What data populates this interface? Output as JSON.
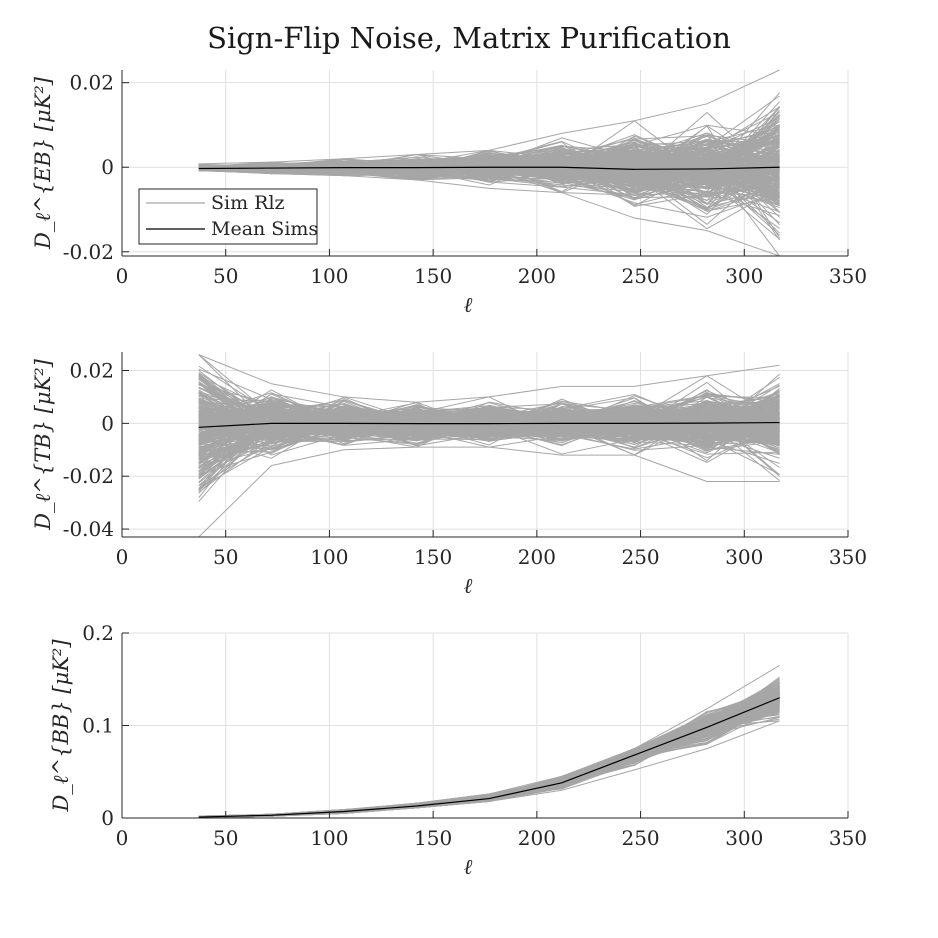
{
  "title": "Sign-Flip Noise, Matrix Purification",
  "colors": {
    "realization": "#a6a6a6",
    "mean": "#000000",
    "grid": "#e0e0e0",
    "axis": "#262626"
  },
  "legend": {
    "items": [
      "Sim Rlz",
      "Mean Sims"
    ],
    "position": "bottom-left of top panel"
  },
  "chart_data": [
    {
      "type": "line",
      "panel": "EB",
      "xlabel": "ℓ",
      "ylabel": "D_ℓ^{EB} [μK²]",
      "xlim": [
        0,
        350
      ],
      "ylim": [
        -0.021,
        0.023
      ],
      "xticks": [
        0,
        50,
        100,
        150,
        200,
        250,
        300,
        350
      ],
      "xtick_labels": [
        "0",
        "50",
        "100",
        "150",
        "200",
        "250",
        "300",
        "350"
      ],
      "yticks": [
        -0.02,
        0,
        0.02
      ],
      "ytick_labels": [
        "-0.02",
        "0",
        "0.02"
      ],
      "grid": true,
      "x": [
        37,
        72,
        107,
        142,
        177,
        212,
        247,
        282,
        317
      ],
      "series": [
        {
          "name": "Sim Rlz",
          "role": "realizations",
          "n": 300,
          "spread": [
            0.0004,
            0.0006,
            0.0009,
            0.0012,
            0.0016,
            0.0022,
            0.0035,
            0.0045,
            0.0065
          ],
          "upper_envelope": [
            0.0008,
            0.0012,
            0.002,
            0.003,
            0.004,
            0.008,
            0.011,
            0.015,
            0.023
          ],
          "lower_envelope": [
            -0.0008,
            -0.0015,
            -0.002,
            -0.003,
            -0.005,
            -0.006,
            -0.012,
            -0.015,
            -0.021
          ]
        },
        {
          "name": "Mean Sims",
          "role": "mean",
          "values": [
            -0.0003,
            -0.0002,
            -0.0001,
            -0.0001,
            0.0,
            0.0,
            -0.0005,
            -0.0004,
            0.0
          ]
        }
      ]
    },
    {
      "type": "line",
      "panel": "TB",
      "xlabel": "ℓ",
      "ylabel": "D_ℓ^{TB} [μK²]",
      "xlim": [
        0,
        350
      ],
      "ylim": [
        -0.043,
        0.027
      ],
      "xticks": [
        0,
        50,
        100,
        150,
        200,
        250,
        300,
        350
      ],
      "xtick_labels": [
        "0",
        "50",
        "100",
        "150",
        "200",
        "250",
        "300",
        "350"
      ],
      "yticks": [
        -0.04,
        -0.02,
        0,
        0.02
      ],
      "ytick_labels": [
        "-0.04",
        "-0.02",
        "0",
        "0.02"
      ],
      "grid": true,
      "x": [
        37,
        72,
        107,
        142,
        177,
        212,
        247,
        282,
        317
      ],
      "series": [
        {
          "name": "Sim Rlz",
          "role": "realizations",
          "n": 300,
          "spread": [
            0.011,
            0.0045,
            0.0035,
            0.0033,
            0.0033,
            0.0035,
            0.004,
            0.0055,
            0.0065
          ],
          "upper_envelope": [
            0.026,
            0.015,
            0.01,
            0.008,
            0.01,
            0.014,
            0.014,
            0.018,
            0.022
          ],
          "lower_envelope": [
            -0.043,
            -0.016,
            -0.01,
            -0.009,
            -0.009,
            -0.012,
            -0.012,
            -0.022,
            -0.022
          ]
        },
        {
          "name": "Mean Sims",
          "role": "mean",
          "values": [
            -0.0015,
            0.0,
            0.0,
            -0.0001,
            -0.0001,
            0.0,
            0.0,
            0.0001,
            0.0003
          ]
        }
      ]
    },
    {
      "type": "line",
      "panel": "BB",
      "xlabel": "ℓ",
      "ylabel": "D_ℓ^{BB} [μK²]",
      "xlim": [
        0,
        350
      ],
      "ylim": [
        0,
        0.2
      ],
      "xticks": [
        0,
        50,
        100,
        150,
        200,
        250,
        300,
        350
      ],
      "xtick_labels": [
        "0",
        "50",
        "100",
        "150",
        "200",
        "250",
        "300",
        "350"
      ],
      "yticks": [
        0,
        0.1,
        0.2
      ],
      "ytick_labels": [
        "0",
        "0.1",
        "0.2"
      ],
      "grid": true,
      "x": [
        37,
        72,
        107,
        142,
        177,
        212,
        247,
        282,
        317
      ],
      "series": [
        {
          "name": "Sim Rlz",
          "role": "realizations",
          "n": 300,
          "spread": [
            0.0006,
            0.0009,
            0.0012,
            0.0016,
            0.0022,
            0.003,
            0.0045,
            0.0065,
            0.009
          ],
          "upper_envelope": [
            0.002,
            0.004,
            0.009,
            0.016,
            0.026,
            0.045,
            0.075,
            0.118,
            0.165
          ],
          "lower_envelope": [
            0.0005,
            0.002,
            0.005,
            0.011,
            0.018,
            0.03,
            0.052,
            0.075,
            0.105
          ]
        },
        {
          "name": "Mean Sims",
          "role": "mean",
          "values": [
            0.001,
            0.003,
            0.007,
            0.013,
            0.021,
            0.038,
            0.068,
            0.098,
            0.13
          ]
        }
      ]
    }
  ]
}
